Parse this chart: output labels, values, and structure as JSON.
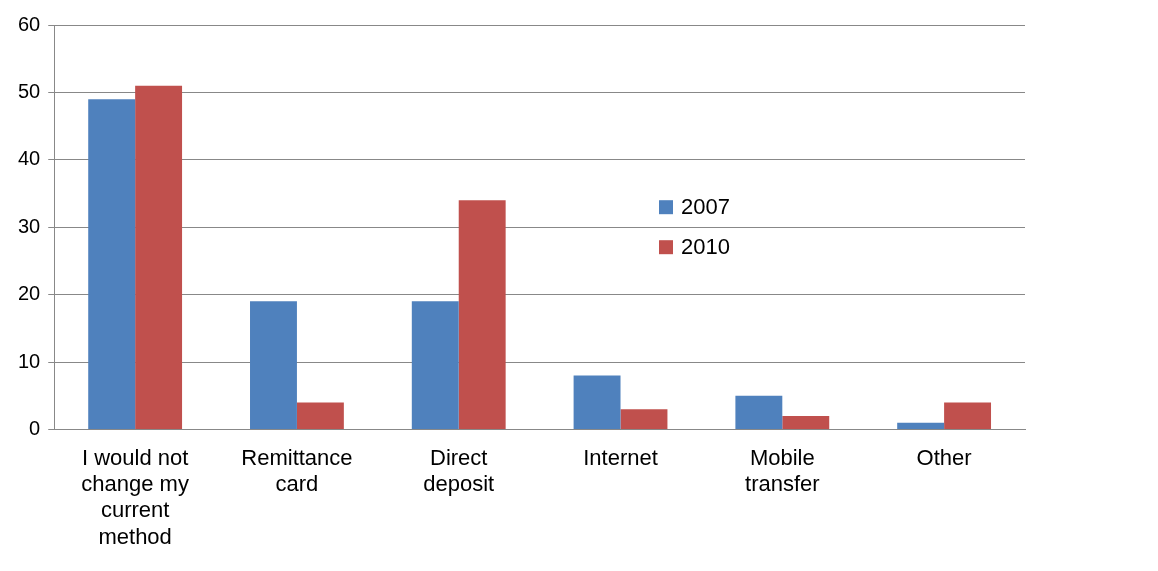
{
  "chart_data": {
    "type": "bar",
    "categories": [
      "I would not change my current method",
      "Remittance card",
      "Direct deposit",
      "Internet",
      "Mobile transfer",
      "Other"
    ],
    "series": [
      {
        "name": "2007",
        "color": "#4f81bd",
        "values": [
          49,
          19,
          19,
          8,
          5,
          1
        ]
      },
      {
        "name": "2010",
        "color": "#c0504d",
        "values": [
          51,
          4,
          34,
          3,
          2,
          4
        ]
      }
    ],
    "ylim": [
      0,
      60
    ],
    "yticks": [
      0,
      10,
      20,
      30,
      40,
      50,
      60
    ],
    "grid": "y",
    "legend": "right"
  }
}
